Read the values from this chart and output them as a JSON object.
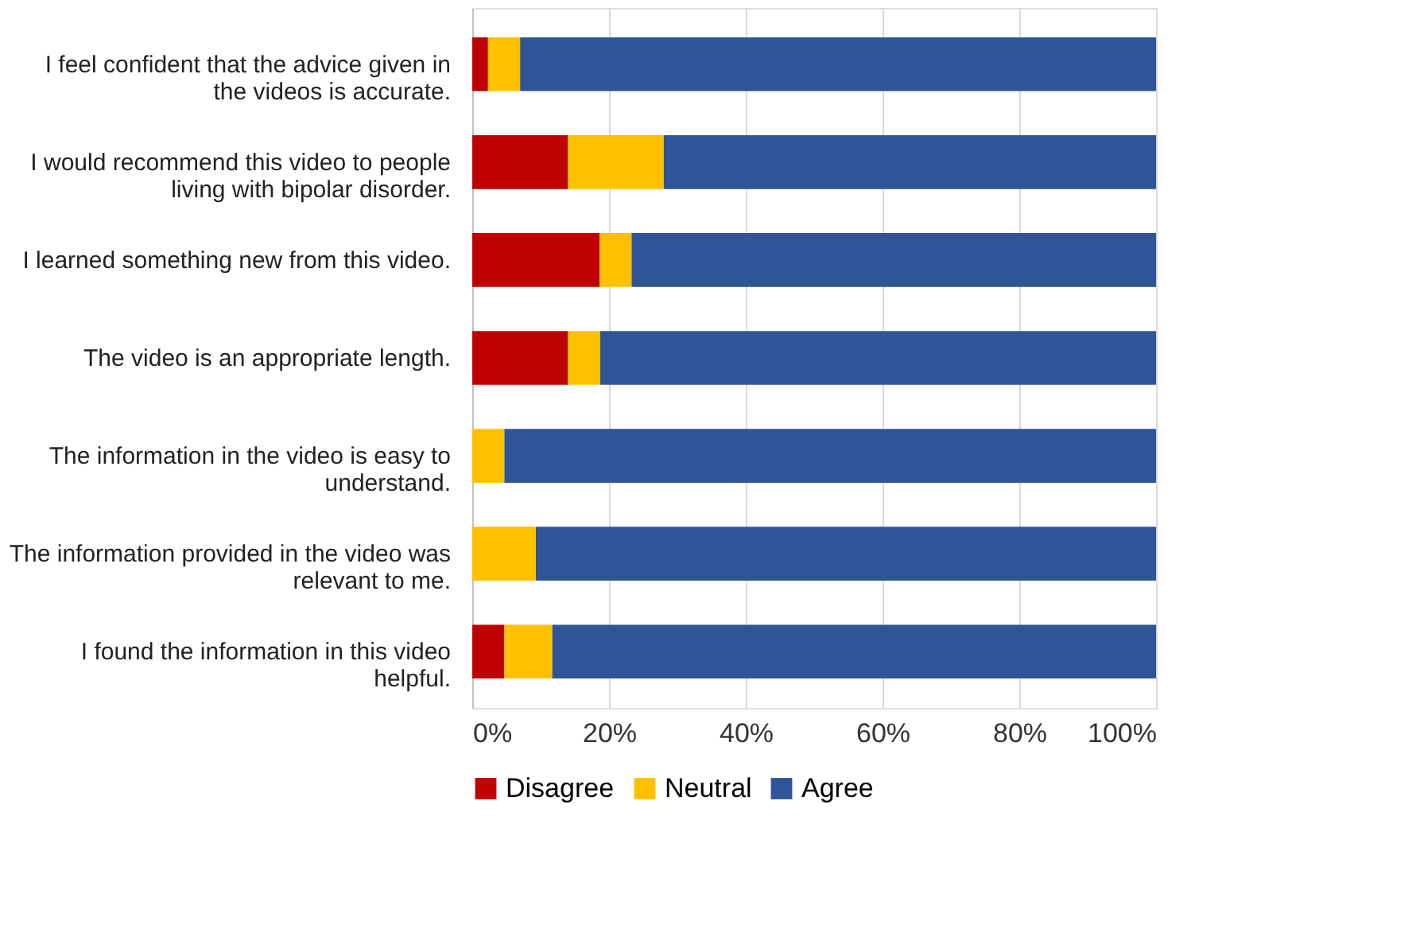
{
  "chart_data": {
    "type": "bar",
    "orientation": "horizontal",
    "stacked": true,
    "categories": [
      "I feel confident that the advice given in the videos is accurate.",
      "I would recommend this video to people living with bipolar disorder.",
      "I learned something new from this video.",
      "The video is an appropriate length.",
      "The information in the video is easy to understand.",
      "The information provided in the video was relevant to me.",
      "I found the information in this video helpful."
    ],
    "series": [
      {
        "name": "Disagree",
        "color": "#c00000",
        "values": [
          2.3,
          14.0,
          18.6,
          14.0,
          0,
          0,
          4.7
        ]
      },
      {
        "name": "Neutral",
        "color": "#ffc000",
        "values": [
          4.7,
          14.0,
          4.7,
          4.7,
          4.7,
          9.3,
          7.0
        ]
      },
      {
        "name": "Agree",
        "color": "#2f5597",
        "values": [
          93.0,
          72.0,
          76.7,
          81.3,
          95.3,
          90.7,
          88.3
        ]
      }
    ],
    "xlim": [
      0,
      100
    ],
    "xticks": [
      {
        "value": 0,
        "label": "0%"
      },
      {
        "value": 20,
        "label": "20%"
      },
      {
        "value": 40,
        "label": "40%"
      },
      {
        "value": 60,
        "label": "60%"
      },
      {
        "value": 80,
        "label": "80%"
      },
      {
        "value": 100,
        "label": "100%"
      }
    ],
    "grid": "x",
    "legend": "bottom"
  }
}
